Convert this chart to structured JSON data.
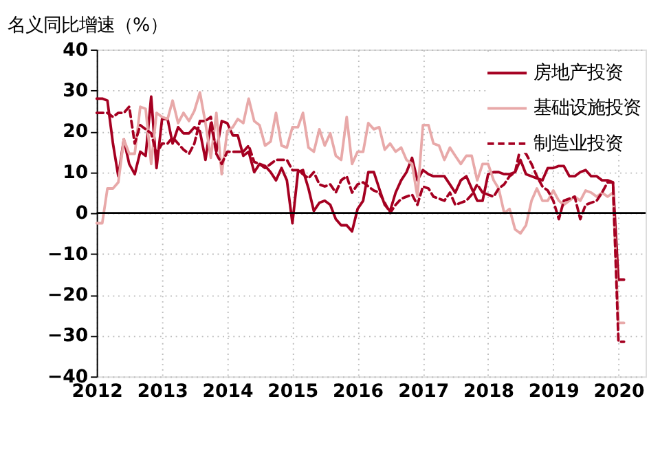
{
  "chart_data": {
    "type": "line",
    "title": "名义同比增速（%）",
    "x": [
      "2012-01",
      "2012-02",
      "2012-03",
      "2012-04",
      "2012-05",
      "2012-06",
      "2012-07",
      "2012-08",
      "2012-09",
      "2012-10",
      "2012-11",
      "2012-12",
      "2013-01",
      "2013-02",
      "2013-03",
      "2013-04",
      "2013-05",
      "2013-06",
      "2013-07",
      "2013-08",
      "2013-09",
      "2013-10",
      "2013-11",
      "2013-12",
      "2014-01",
      "2014-02",
      "2014-03",
      "2014-04",
      "2014-05",
      "2014-06",
      "2014-07",
      "2014-08",
      "2014-09",
      "2014-10",
      "2014-11",
      "2014-12",
      "2015-01",
      "2015-02",
      "2015-03",
      "2015-04",
      "2015-05",
      "2015-06",
      "2015-07",
      "2015-08",
      "2015-09",
      "2015-10",
      "2015-11",
      "2015-12",
      "2016-01",
      "2016-02",
      "2016-03",
      "2016-04",
      "2016-05",
      "2016-06",
      "2016-07",
      "2016-08",
      "2016-09",
      "2016-10",
      "2016-11",
      "2016-12",
      "2017-01",
      "2017-02",
      "2017-03",
      "2017-04",
      "2017-05",
      "2017-06",
      "2017-07",
      "2017-08",
      "2017-09",
      "2017-10",
      "2017-11",
      "2017-12",
      "2018-01",
      "2018-02",
      "2018-03",
      "2018-04",
      "2018-05",
      "2018-06",
      "2018-07",
      "2018-08",
      "2018-09",
      "2018-10",
      "2018-11",
      "2018-12",
      "2019-01",
      "2019-02",
      "2019-03",
      "2019-04",
      "2019-05",
      "2019-06",
      "2019-07",
      "2019-08",
      "2019-09",
      "2019-10",
      "2019-11",
      "2019-12",
      "2020-01",
      "2020-02"
    ],
    "series": [
      {
        "name": "房地产投资",
        "color": "#a50021",
        "line_style": "solid",
        "values": [
          28,
          28,
          27.5,
          17,
          9,
          18,
          12,
          9.5,
          15,
          14,
          28.5,
          11,
          23,
          23,
          17,
          21,
          19.5,
          19.5,
          21,
          20,
          13,
          22,
          15,
          22.5,
          22,
          19,
          19,
          14,
          15,
          10,
          12,
          11.5,
          10,
          8,
          11,
          8,
          -2.5,
          10,
          10.5,
          6,
          0.5,
          2.5,
          3,
          2,
          -1.5,
          -3,
          -3,
          -4.5,
          1,
          3,
          10,
          10,
          6,
          2,
          0.5,
          5,
          8,
          10,
          13.5,
          8,
          10.5,
          9.5,
          9,
          9,
          9,
          7,
          5,
          8,
          9,
          6,
          3,
          3,
          9.5,
          10,
          10,
          9.5,
          9.5,
          10,
          13,
          9.5,
          9,
          8.5,
          8,
          11,
          11,
          11.5,
          11.5,
          9,
          9,
          10,
          10.5,
          9,
          9,
          8,
          8,
          7.5,
          -16.3,
          -16.3
        ]
      },
      {
        "name": "基础设施投资",
        "color": "#e8a9a9",
        "line_style": "solid",
        "values": [
          -2.5,
          -2.5,
          6,
          6,
          7.5,
          18,
          14.5,
          14.5,
          26,
          25.5,
          12,
          24.5,
          23.5,
          23,
          27.5,
          22,
          24.5,
          22.5,
          25,
          29.5,
          22,
          13.5,
          24.5,
          9.5,
          20,
          21,
          23,
          22,
          28,
          22.5,
          21.5,
          16.5,
          17.5,
          24.5,
          16.5,
          16,
          21,
          21,
          24.5,
          16,
          15,
          20.5,
          16.5,
          19.5,
          14,
          13,
          23.5,
          12,
          15,
          15,
          22,
          20.5,
          21,
          15.5,
          17,
          15,
          16,
          13,
          12,
          4,
          21.5,
          21.5,
          17,
          16.5,
          13,
          16,
          14,
          12,
          14,
          14,
          8,
          12,
          12,
          8,
          6,
          0,
          1,
          -4,
          -5,
          -3,
          3,
          6,
          3,
          3,
          5.5,
          3,
          2,
          3,
          4,
          3,
          5.5,
          5,
          4,
          5,
          4,
          5,
          -26.9,
          -26.9
        ]
      },
      {
        "name": "制造业投资",
        "color": "#a50021",
        "line_style": "dashed",
        "values": [
          24.5,
          24.5,
          24.5,
          23.5,
          24.5,
          24.5,
          26,
          17,
          21.5,
          20.5,
          19.5,
          14.5,
          17,
          17,
          18.5,
          17,
          15.5,
          14.5,
          17,
          22.5,
          22.5,
          23.5,
          14.5,
          12,
          15,
          15,
          15,
          15,
          16.5,
          12.5,
          12,
          11,
          12,
          13,
          13,
          13,
          10.5,
          10.5,
          9.5,
          8.5,
          10,
          7,
          6.5,
          7,
          5,
          8,
          9,
          5,
          7,
          7.5,
          6.5,
          5.5,
          5,
          2.5,
          0,
          2,
          3.5,
          4,
          4.5,
          2,
          6.5,
          6,
          4,
          3.5,
          3,
          5,
          2,
          2.5,
          3,
          4.5,
          7,
          5,
          4.5,
          4,
          6,
          7,
          9,
          10,
          16,
          14.5,
          12,
          9,
          6.5,
          5.5,
          3,
          -1.5,
          3,
          3.5,
          4,
          -1.5,
          2,
          2.5,
          3,
          5,
          7.5,
          7.5,
          -31.5,
          -31.5
        ]
      }
    ],
    "xlim": [
      "2012-01",
      "2020-06"
    ],
    "xticks": [
      "2012",
      "2013",
      "2014",
      "2015",
      "2016",
      "2017",
      "2018",
      "2019",
      "2020"
    ],
    "ylim": [
      -40,
      40
    ],
    "yticks": [
      -40,
      -30,
      -20,
      -10,
      0,
      10,
      20,
      30,
      40
    ],
    "ref_lines": [
      {
        "axis": "y",
        "value": 0,
        "color": "#000000"
      }
    ],
    "grid": true,
    "legend": "top right",
    "marker": "none"
  }
}
